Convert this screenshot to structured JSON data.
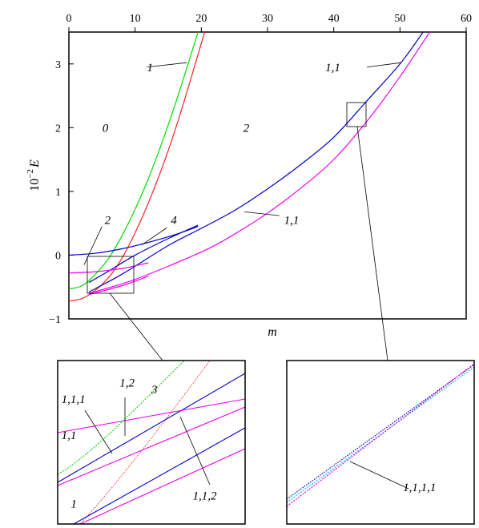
{
  "chart_data": {
    "type": "line",
    "xlabel": "m",
    "ylabel_base": "10",
    "ylabel_exp": "−2",
    "ylabel_var": "E",
    "xlim": [
      0,
      60
    ],
    "ylim": [
      -1,
      3.5
    ],
    "xticks": [
      "0",
      "10",
      "20",
      "30",
      "40",
      "50",
      "60"
    ],
    "yticks": [
      "−1",
      "0",
      "1",
      "2",
      "3"
    ],
    "colors": {
      "green": "#00dd00",
      "red": "#ff2020",
      "blue": "#0000cc",
      "magenta": "#ee00ee",
      "cyan": "#00cccc"
    },
    "series": [
      {
        "color": "green",
        "points": [
          [
            0,
            -0.53
          ],
          [
            2,
            -0.48
          ],
          [
            4,
            -0.3
          ],
          [
            6,
            -0.05
          ],
          [
            8,
            0.3
          ],
          [
            10,
            0.72
          ],
          [
            12,
            1.2
          ],
          [
            14,
            1.75
          ],
          [
            16,
            2.35
          ],
          [
            18,
            3.0
          ],
          [
            19.5,
            3.5
          ]
        ]
      },
      {
        "color": "red",
        "points": [
          [
            0,
            -0.72
          ],
          [
            2,
            -0.68
          ],
          [
            4,
            -0.55
          ],
          [
            6,
            -0.35
          ],
          [
            8,
            -0.05
          ],
          [
            10,
            0.35
          ],
          [
            12,
            0.82
          ],
          [
            14,
            1.35
          ],
          [
            16,
            1.95
          ],
          [
            18,
            2.62
          ],
          [
            20.5,
            3.5
          ]
        ]
      },
      {
        "color": "blue",
        "points": [
          [
            0,
            0
          ],
          [
            4,
            0.03
          ],
          [
            8,
            0.1
          ],
          [
            12,
            0.2
          ],
          [
            16,
            0.32
          ],
          [
            19.5,
            0.45
          ]
        ]
      },
      {
        "color": "blue",
        "points": [
          [
            3,
            -0.43
          ],
          [
            6,
            -0.25
          ],
          [
            10,
            0.0
          ],
          [
            15,
            0.26
          ],
          [
            19.5,
            0.47
          ]
        ]
      },
      {
        "color": "blue",
        "points": [
          [
            3,
            -0.58
          ],
          [
            8,
            -0.3
          ],
          [
            15,
            0.15
          ],
          [
            20,
            0.42
          ],
          [
            25,
            0.7
          ],
          [
            30,
            1.04
          ],
          [
            35,
            1.42
          ],
          [
            40,
            1.85
          ],
          [
            45,
            2.42
          ],
          [
            50,
            3.0
          ],
          [
            53.5,
            3.5
          ]
        ]
      },
      {
        "color": "magenta",
        "points": [
          [
            0,
            -0.28
          ],
          [
            4,
            -0.26
          ],
          [
            8,
            -0.21
          ],
          [
            12,
            -0.12
          ]
        ]
      },
      {
        "color": "magenta",
        "points": [
          [
            3,
            -0.6
          ],
          [
            10,
            -0.38
          ],
          [
            20,
            0.05
          ],
          [
            25,
            0.33
          ],
          [
            30,
            0.66
          ],
          [
            35,
            1.05
          ],
          [
            40,
            1.5
          ],
          [
            45,
            2.1
          ],
          [
            50,
            2.8
          ],
          [
            54.5,
            3.5
          ]
        ]
      },
      {
        "color": "magenta",
        "points": [
          [
            3,
            -0.62
          ],
          [
            8,
            -0.48
          ],
          [
            12,
            -0.33
          ]
        ]
      }
    ],
    "annotations": [
      {
        "text": "1",
        "x": 11.8,
        "y": 2.95,
        "tx": 17.8,
        "ty": 3.02,
        "lx": 11.8,
        "ly": 2.95
      },
      {
        "text": "0",
        "x": 5.5,
        "y": 2.0
      },
      {
        "text": "2",
        "x": 26.8,
        "y": 2.0
      },
      {
        "text": "1,1",
        "x": 41.0,
        "y": 2.95,
        "lx": 45.0,
        "ly": 2.95,
        "tx": 50.2,
        "ty": 3.02
      },
      {
        "text": "2",
        "x": 5.4,
        "y": 0.55,
        "lx": 5.0,
        "ly": 0.45,
        "tx": 2.3,
        "ty": -0.15
      },
      {
        "text": "4",
        "x": 15.4,
        "y": 0.55,
        "lx": 14.8,
        "ly": 0.43,
        "tx": 11.0,
        "ty": 0.16
      },
      {
        "text": "1,1",
        "x": 32.5,
        "y": 0.55,
        "lx": 31.8,
        "ly": 0.62,
        "tx": 26.5,
        "ty": 0.68
      }
    ],
    "insets": [
      {
        "annotations": [
          {
            "text": "3",
            "x": 0.5,
            "y": 0.2
          },
          {
            "text": "1,2",
            "x": 0.33,
            "y": 0.16
          },
          {
            "text": "1,1,1",
            "x": 0.02,
            "y": 0.26
          },
          {
            "text": "1,1",
            "x": 0.02,
            "y": 0.48
          },
          {
            "text": "1",
            "x": 0.07,
            "y": 0.9
          },
          {
            "text": "1,1,2",
            "x": 0.72,
            "y": 0.85
          }
        ]
      },
      {
        "annotations": [
          {
            "text": "1,1,1,1",
            "x": 0.62,
            "y": 0.8
          }
        ]
      }
    ]
  }
}
